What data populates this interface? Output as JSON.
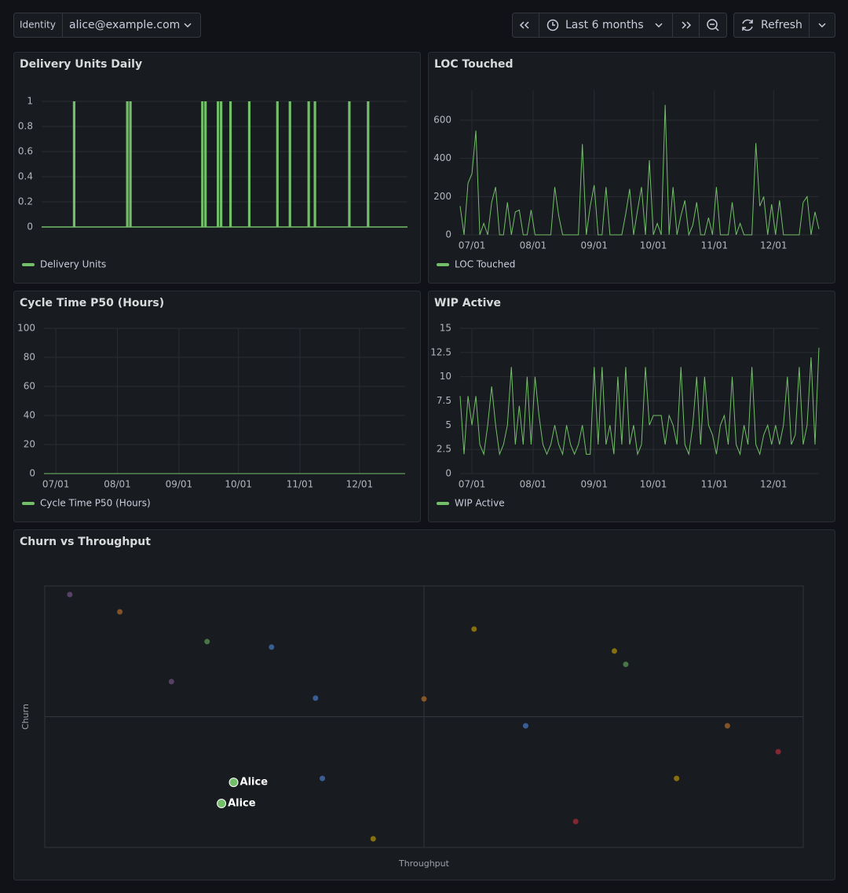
{
  "toolbar": {
    "identity_label": "Identity",
    "identity_value": "alice@example.com",
    "time_range": "Last 6 months",
    "refresh": "Refresh"
  },
  "chart_data": [
    {
      "type": "bar",
      "title": "Delivery Units Daily",
      "series": [
        {
          "name": "Delivery Units",
          "color": "#73bf69",
          "values": [
            0,
            0,
            0,
            0,
            0,
            0,
            0,
            0,
            0,
            0,
            1,
            0,
            0,
            0,
            0,
            0,
            0,
            0,
            0,
            0,
            0,
            0,
            0,
            0,
            0,
            0,
            0,
            1,
            1,
            0,
            0,
            0,
            0,
            0,
            0,
            0,
            0,
            0,
            0,
            0,
            0,
            0,
            0,
            0,
            0,
            0,
            0,
            0,
            0,
            0,
            0,
            1,
            1,
            0,
            0,
            0,
            1,
            1,
            0,
            0,
            1,
            0,
            0,
            0,
            0,
            0,
            1,
            0,
            0,
            0,
            0,
            0,
            0,
            0,
            0,
            1,
            0,
            0,
            0,
            1,
            0,
            0,
            0,
            0,
            0,
            1,
            0,
            1,
            0,
            0,
            0,
            0,
            0,
            0,
            0,
            0,
            0,
            0,
            1,
            0,
            0,
            0,
            0,
            0,
            1,
            0,
            0,
            0,
            0,
            0,
            0,
            0,
            0,
            0,
            0,
            0,
            0
          ]
        }
      ],
      "ylim": [
        0,
        1.1
      ],
      "yticks": [
        0,
        0.2,
        0.4,
        0.6,
        0.8,
        1
      ],
      "grid": true,
      "legend": "bottom-left"
    },
    {
      "type": "line",
      "title": "LOC Touched",
      "x": [
        -6,
        -4,
        -2,
        0,
        2,
        4,
        6,
        8,
        10,
        12,
        14,
        16,
        18,
        20,
        22,
        24,
        26,
        28,
        30,
        32,
        34,
        36,
        38,
        40,
        42,
        44,
        46,
        48,
        50,
        52,
        54,
        56,
        58,
        60,
        62,
        64,
        66,
        68,
        70,
        72,
        74,
        76,
        78,
        80,
        82,
        84,
        86,
        88,
        90,
        92,
        94,
        96,
        98,
        100,
        102,
        104,
        106,
        108,
        110,
        112,
        114,
        116,
        118,
        120,
        122,
        124,
        126,
        128,
        130,
        132,
        134,
        136,
        138,
        140,
        142,
        144,
        146,
        148,
        150,
        152,
        154,
        156,
        158,
        160,
        162,
        164,
        166,
        168,
        170,
        172,
        174,
        176
      ],
      "series": [
        {
          "name": "LOC Touched",
          "color": "#73bf69",
          "values": [
            150,
            0,
            270,
            320,
            545,
            0,
            60,
            0,
            170,
            250,
            0,
            0,
            170,
            0,
            120,
            130,
            0,
            0,
            130,
            0,
            0,
            0,
            0,
            0,
            250,
            100,
            0,
            0,
            0,
            0,
            0,
            475,
            0,
            150,
            260,
            0,
            0,
            250,
            0,
            0,
            0,
            0,
            110,
            240,
            0,
            130,
            250,
            0,
            390,
            0,
            60,
            0,
            680,
            0,
            250,
            0,
            100,
            180,
            0,
            50,
            170,
            0,
            0,
            90,
            0,
            250,
            0,
            0,
            0,
            170,
            0,
            60,
            0,
            0,
            0,
            480,
            150,
            200,
            0,
            160,
            0,
            180,
            0,
            0,
            0,
            0,
            0,
            170,
            200,
            0,
            120,
            30
          ]
        }
      ],
      "xlim": [
        -6,
        176
      ],
      "xticks": [
        {
          "value": 0,
          "label": "07/01"
        },
        {
          "value": 31,
          "label": "08/01"
        },
        {
          "value": 62,
          "label": "09/01"
        },
        {
          "value": 92,
          "label": "10/01"
        },
        {
          "value": 123,
          "label": "11/01"
        },
        {
          "value": 153,
          "label": "12/01"
        }
      ],
      "ylim": [
        0,
        756
      ],
      "yticks": [
        0,
        200,
        400,
        600
      ],
      "grid": true,
      "legend": "bottom-left"
    },
    {
      "type": "line",
      "title": "Cycle Time P50 (Hours)",
      "x": [
        -6,
        176
      ],
      "series": [
        {
          "name": "Cycle Time P50 (Hours)",
          "color": "#73bf69",
          "values": [
            0,
            0
          ]
        }
      ],
      "xlim": [
        -6,
        176
      ],
      "xticks": [
        {
          "value": 0,
          "label": "07/01"
        },
        {
          "value": 31,
          "label": "08/01"
        },
        {
          "value": 62,
          "label": "09/01"
        },
        {
          "value": 92,
          "label": "10/01"
        },
        {
          "value": 123,
          "label": "11/01"
        },
        {
          "value": 153,
          "label": "12/01"
        }
      ],
      "ylim": [
        0,
        100
      ],
      "yticks": [
        0,
        20,
        40,
        60,
        80,
        100
      ],
      "grid": true,
      "legend": "bottom-left"
    },
    {
      "type": "line",
      "title": "WIP Active",
      "x": [
        -6,
        -4,
        -2,
        0,
        2,
        4,
        6,
        8,
        10,
        12,
        14,
        16,
        18,
        20,
        22,
        24,
        26,
        28,
        30,
        32,
        34,
        36,
        38,
        40,
        42,
        44,
        46,
        48,
        50,
        52,
        54,
        56,
        58,
        60,
        62,
        64,
        66,
        68,
        70,
        72,
        74,
        76,
        78,
        80,
        82,
        84,
        86,
        88,
        90,
        92,
        94,
        96,
        98,
        100,
        102,
        104,
        106,
        108,
        110,
        112,
        114,
        116,
        118,
        120,
        122,
        124,
        126,
        128,
        130,
        132,
        134,
        136,
        138,
        140,
        142,
        144,
        146,
        148,
        150,
        152,
        154,
        156,
        158,
        160,
        162,
        164,
        166,
        168,
        170,
        172,
        174,
        176
      ],
      "series": [
        {
          "name": "WIP Active",
          "color": "#73bf69",
          "values": [
            8,
            2,
            8,
            5,
            8,
            3,
            2,
            5,
            9,
            5,
            2,
            3,
            5,
            11,
            3,
            7,
            3,
            10,
            3,
            10,
            6,
            3,
            2,
            3,
            5,
            3,
            2,
            5,
            3,
            2,
            3,
            5,
            2,
            2,
            11,
            3,
            11,
            3,
            5,
            2,
            10,
            3,
            11,
            3,
            5,
            2,
            3,
            11,
            5,
            6,
            6,
            6,
            3,
            6,
            5,
            3,
            11,
            3,
            2,
            5,
            10,
            3,
            10,
            5,
            4,
            2,
            5,
            6,
            3,
            10,
            3,
            2,
            5,
            3,
            11,
            3,
            2,
            4,
            5,
            3,
            5,
            3,
            5,
            10,
            3,
            4,
            11,
            3,
            5,
            12,
            3,
            13
          ]
        }
      ],
      "xlim": [
        -6,
        176
      ],
      "xticks": [
        {
          "value": 0,
          "label": "07/01"
        },
        {
          "value": 31,
          "label": "08/01"
        },
        {
          "value": 62,
          "label": "09/01"
        },
        {
          "value": 92,
          "label": "10/01"
        },
        {
          "value": 123,
          "label": "11/01"
        },
        {
          "value": 153,
          "label": "12/01"
        }
      ],
      "ylim": [
        0,
        15
      ],
      "yticks": [
        0,
        2.5,
        5,
        7.5,
        10,
        12.5,
        15
      ],
      "grid": true,
      "legend": "bottom-left"
    },
    {
      "type": "scatter",
      "title": "Churn vs Throughput",
      "xlabel": "Throughput",
      "ylabel": "Churn",
      "xlim": [
        0,
        100
      ],
      "ylim": [
        0,
        100
      ],
      "point_opacity": 0.55,
      "points": [
        {
          "x": 3.3,
          "y": 96.7,
          "color": "#8e5ea2"
        },
        {
          "x": 9.9,
          "y": 90.1,
          "color": "#d9822b"
        },
        {
          "x": 16.7,
          "y": 63.4,
          "color": "#8e5ea2"
        },
        {
          "x": 21.4,
          "y": 78.7,
          "color": "#73bf69"
        },
        {
          "x": 29.9,
          "y": 76.6,
          "color": "#5794f2"
        },
        {
          "x": 35.7,
          "y": 57.1,
          "color": "#5794f2"
        },
        {
          "x": 36.6,
          "y": 26.4,
          "color": "#5794f2"
        },
        {
          "x": 43.3,
          "y": 3.3,
          "color": "#e0b400"
        },
        {
          "x": 50.0,
          "y": 56.8,
          "color": "#d9822b"
        },
        {
          "x": 56.6,
          "y": 83.5,
          "color": "#e0b400"
        },
        {
          "x": 63.4,
          "y": 46.5,
          "color": "#5794f2"
        },
        {
          "x": 70.0,
          "y": 9.9,
          "color": "#e02f44"
        },
        {
          "x": 75.1,
          "y": 75.1,
          "color": "#e0b400"
        },
        {
          "x": 76.6,
          "y": 70.0,
          "color": "#73bf69"
        },
        {
          "x": 83.3,
          "y": 26.4,
          "color": "#e0b400"
        },
        {
          "x": 90.0,
          "y": 46.5,
          "color": "#d9822b"
        },
        {
          "x": 96.7,
          "y": 36.6,
          "color": "#e02f44"
        },
        {
          "x": 24.9,
          "y": 24.9,
          "color": "#73bf69",
          "label": "Alice"
        },
        {
          "x": 23.3,
          "y": 16.8,
          "color": "#73bf69",
          "label": "Alice"
        }
      ]
    }
  ]
}
